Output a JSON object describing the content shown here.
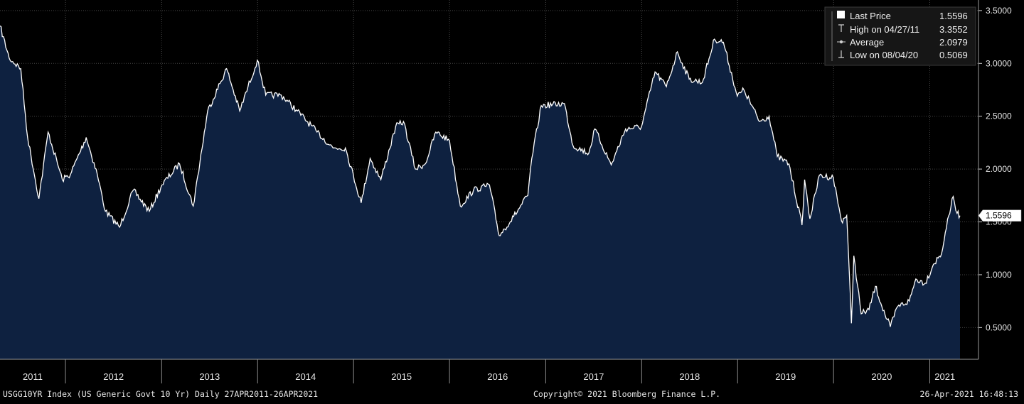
{
  "chart_data": {
    "type": "area",
    "title": "",
    "xlabel": "",
    "ylabel": "",
    "ylim": [
      0.2,
      3.6
    ],
    "y_ticks": [
      0.5,
      1.0,
      1.5,
      2.0,
      2.5,
      3.0,
      3.5
    ],
    "y_tick_labels": [
      "0.5000",
      "1.0000",
      "1.5000",
      "2.0000",
      "2.5000",
      "3.0000",
      "3.5000"
    ],
    "x_range": [
      "2011-04-27",
      "2021-04-26"
    ],
    "x_year_labels": [
      "2011",
      "2012",
      "2013",
      "2014",
      "2015",
      "2016",
      "2017",
      "2018",
      "2019",
      "2020",
      "2021"
    ],
    "grid": true,
    "legend_position": "top-right",
    "colors": {
      "background": "#000000",
      "area": "#0e2140",
      "line": "#ffffff",
      "grid": "#444444"
    },
    "series": [
      {
        "name": "Last Price",
        "x": [
          "2011-04-27",
          "2011-06-01",
          "2011-07-15",
          "2011-08-10",
          "2011-09-22",
          "2011-10-27",
          "2011-12-20",
          "2012-01-20",
          "2012-03-20",
          "2012-05-01",
          "2012-06-01",
          "2012-07-25",
          "2012-09-15",
          "2012-11-15",
          "2013-01-02",
          "2013-03-10",
          "2013-05-01",
          "2013-06-25",
          "2013-09-05",
          "2013-10-25",
          "2013-12-31",
          "2014-02-01",
          "2014-04-01",
          "2014-06-01",
          "2014-08-15",
          "2014-10-15",
          "2014-12-01",
          "2015-01-30",
          "2015-03-05",
          "2015-04-15",
          "2015-06-10",
          "2015-07-10",
          "2015-08-24",
          "2015-10-01",
          "2015-11-10",
          "2016-01-01",
          "2016-02-11",
          "2016-04-01",
          "2016-06-01",
          "2016-07-08",
          "2016-09-01",
          "2016-10-25",
          "2016-11-09",
          "2016-12-15",
          "2017-03-13",
          "2017-04-15",
          "2017-06-14",
          "2017-07-07",
          "2017-09-07",
          "2017-11-01",
          "2017-12-31",
          "2018-02-21",
          "2018-04-05",
          "2018-05-17",
          "2018-07-01",
          "2018-08-20",
          "2018-10-05",
          "2018-11-08",
          "2018-12-31",
          "2019-01-25",
          "2019-03-25",
          "2019-05-01",
          "2019-06-01",
          "2019-07-15",
          "2019-09-03",
          "2019-09-13",
          "2019-10-03",
          "2019-11-08",
          "2019-12-31",
          "2020-01-31",
          "2020-02-20",
          "2020-03-09",
          "2020-03-18",
          "2020-04-15",
          "2020-05-15",
          "2020-06-08",
          "2020-07-15",
          "2020-08-04",
          "2020-09-01",
          "2020-10-15",
          "2020-11-09",
          "2020-12-15",
          "2021-01-15",
          "2021-02-15",
          "2021-03-01",
          "2021-03-31",
          "2021-04-15",
          "2021-04-26"
        ],
        "values": [
          3.3552,
          3.05,
          2.95,
          2.3,
          1.72,
          2.35,
          1.9,
          1.95,
          2.3,
          1.95,
          1.6,
          1.45,
          1.8,
          1.6,
          1.85,
          2.05,
          1.65,
          2.55,
          2.95,
          2.55,
          3.03,
          2.7,
          2.7,
          2.55,
          2.35,
          2.2,
          2.2,
          1.68,
          2.1,
          1.9,
          2.4,
          2.45,
          2.0,
          2.05,
          2.35,
          2.27,
          1.65,
          1.8,
          1.85,
          1.37,
          1.55,
          1.75,
          2.1,
          2.6,
          2.62,
          2.22,
          2.15,
          2.38,
          2.04,
          2.38,
          2.4,
          2.92,
          2.78,
          3.11,
          2.85,
          2.82,
          3.23,
          3.2,
          2.69,
          2.75,
          2.45,
          2.5,
          2.12,
          2.05,
          1.47,
          1.9,
          1.53,
          1.94,
          1.92,
          1.51,
          1.56,
          0.54,
          1.18,
          0.63,
          0.67,
          0.89,
          0.62,
          0.5069,
          0.7,
          0.75,
          0.96,
          0.92,
          1.1,
          1.2,
          1.4,
          1.74,
          1.58,
          1.5596
        ]
      }
    ],
    "last_price_marker": "1.5596"
  },
  "legend": {
    "items": [
      {
        "label": "Last Price",
        "value": "1.5596",
        "icon": "filled-square-icon"
      },
      {
        "label": "High on 04/27/11",
        "value": "3.3552",
        "icon": "high-tick-icon"
      },
      {
        "label": "Average",
        "value": "2.0979",
        "icon": "average-dot-icon"
      },
      {
        "label": "Low on 08/04/20",
        "value": "0.5069",
        "icon": "low-tick-icon"
      }
    ]
  },
  "footer": {
    "left": "USGG10YR Index (US Generic Govt 10 Yr)  Daily 27APR2011-26APR2021",
    "center": "Copyright© 2021 Bloomberg Finance L.P.",
    "right": "26-Apr-2021 16:48:13"
  }
}
